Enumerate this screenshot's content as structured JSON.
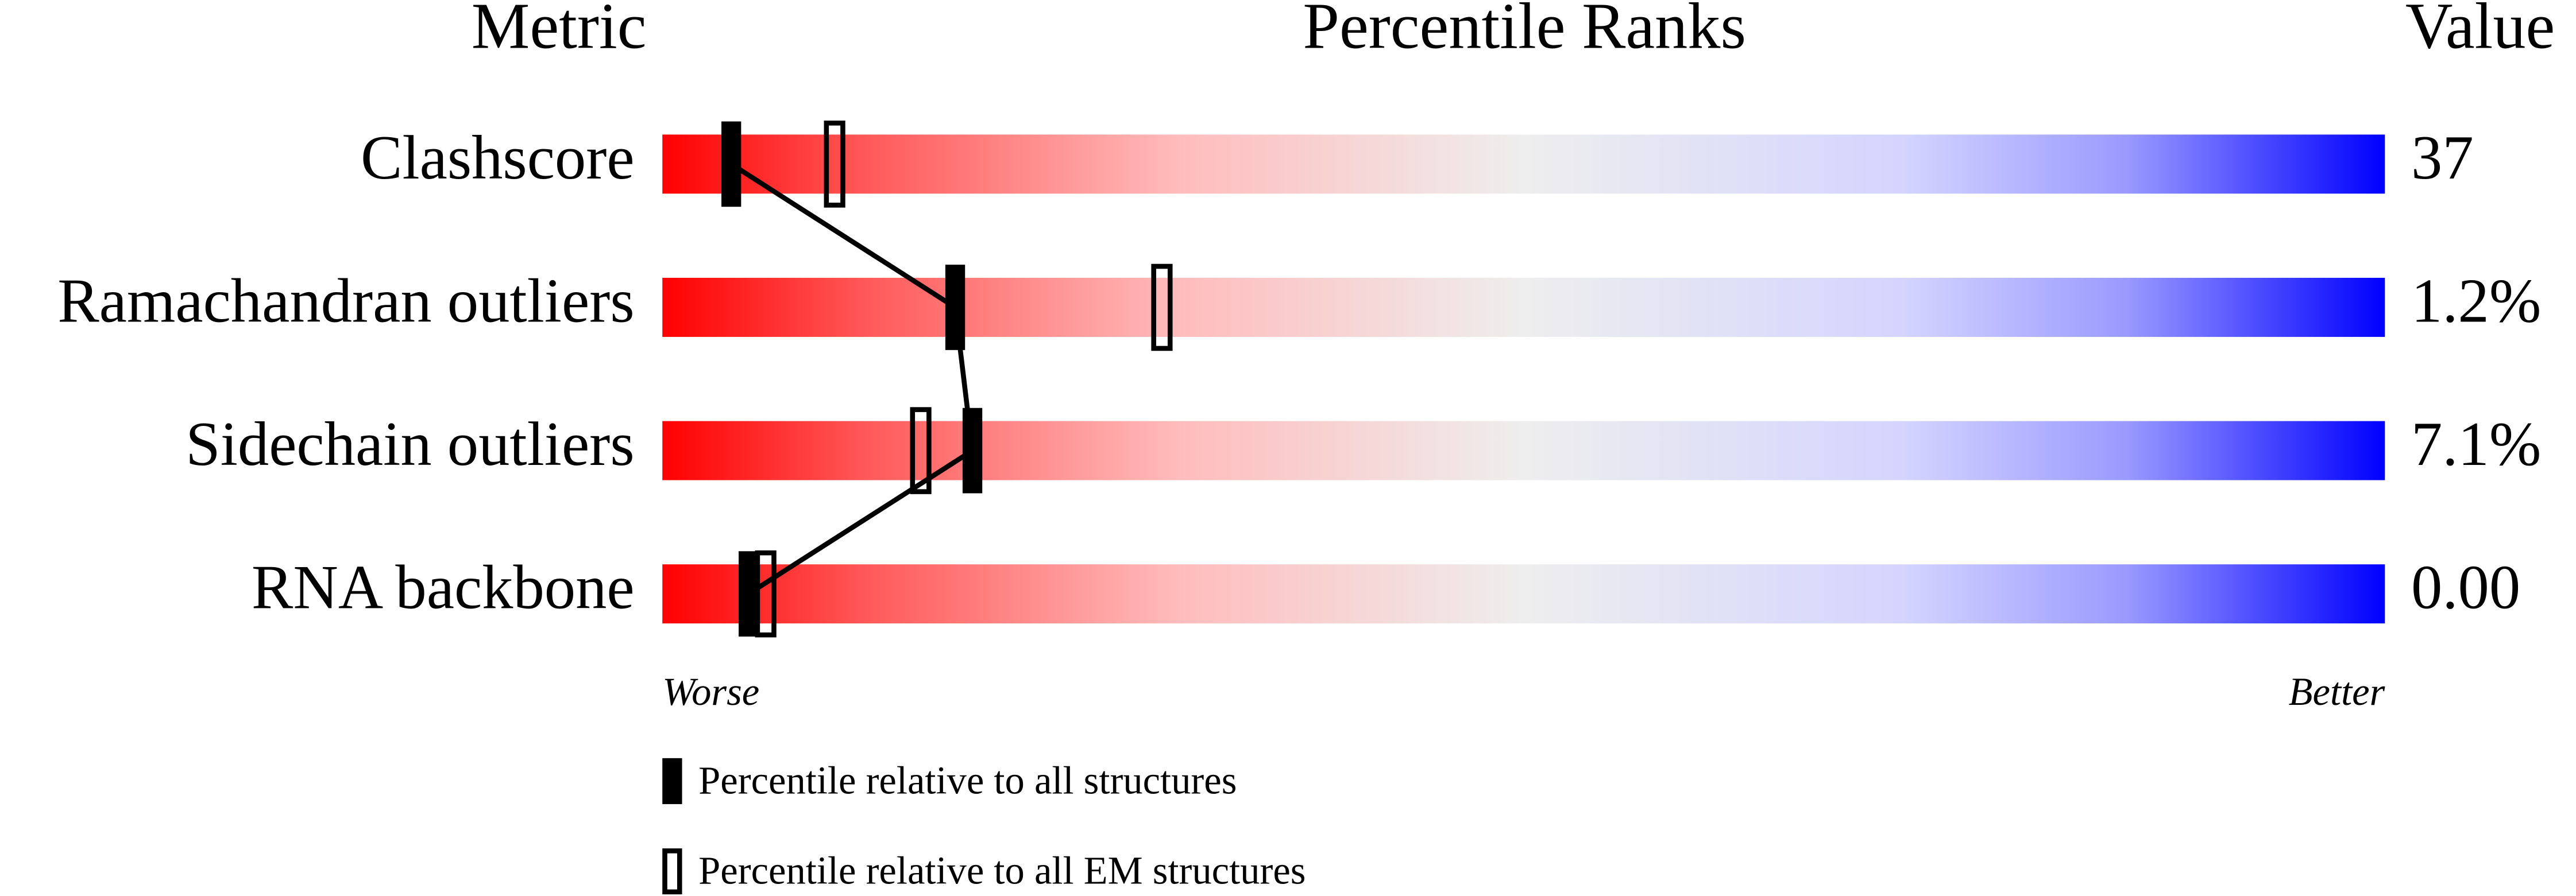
{
  "chart_data": {
    "type": "percentile",
    "headers": {
      "metric": "Metric",
      "ranks": "Percentile Ranks",
      "value": "Value"
    },
    "categories": [
      "Clashscore",
      "Ramachandran outliers",
      "Sidechain outliers",
      "RNA backbone"
    ],
    "metric_values": [
      "37",
      "1.2%",
      "7.1%",
      "0.00"
    ],
    "series": [
      {
        "name": "Percentile relative to all structures",
        "color": "#000000",
        "style": "filled",
        "values": [
          4,
          17,
          18,
          5
        ]
      },
      {
        "name": "Percentile relative to all EM structures",
        "color": "#000000",
        "style": "open",
        "values": [
          10,
          29,
          15,
          6
        ]
      }
    ],
    "xlim": [
      0,
      100
    ],
    "x_end_labels": {
      "low": "Worse",
      "high": "Better"
    }
  }
}
